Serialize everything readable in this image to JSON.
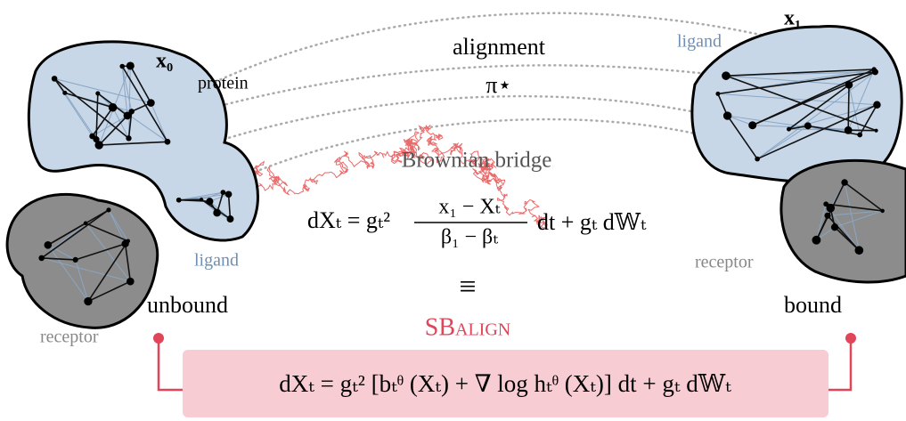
{
  "labels": {
    "x0": "x₀",
    "x1": "x₁",
    "protein": "protein",
    "alignment": "alignment",
    "pi": "π⋆",
    "ligand_top": "ligand",
    "brownian": "Brownian bridge",
    "ligand_bottom": "ligand",
    "receptor_right": "receptor",
    "unbound": "unbound",
    "bound": "bound",
    "equiv": "≡",
    "method": "SBalign",
    "receptor_left": "receptor"
  },
  "bridge_equation": {
    "lhs": "dXₜ = gₜ²",
    "numerator": "x₁ − Xₜ",
    "denominator": "β₁ − βₜ",
    "rhs": "dt + gₜ d𝕎ₜ"
  },
  "model_equation": "dXₜ = gₜ² [bₜᶿ (Xₜ) + ∇ log hₜᶿ (Xₜ)] dt + gₜ d𝕎ₜ"
}
